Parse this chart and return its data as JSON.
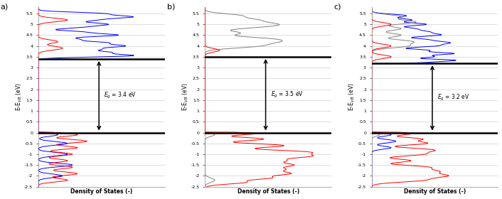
{
  "panels": [
    {
      "label": "a)",
      "eg_text": "$E_g$ = 3.4 eV",
      "eg_value": 3.4,
      "vbm": 0.0,
      "cbm": 3.4,
      "ylabel": "E-E$_{VB}$ (eV)",
      "xlabel": "Density of States (-)"
    },
    {
      "label": "b)",
      "eg_text": "$E_g$ = 3.5 eV",
      "eg_value": 3.5,
      "vbm": 0.0,
      "cbm": 3.5,
      "ylabel": "E-E$_{VB}$ (eV)",
      "xlabel": "Density of States (-)"
    },
    {
      "label": "c)",
      "eg_text": "$E_g$ = 3.2 eV",
      "eg_value": 3.2,
      "vbm": 0.0,
      "cbm": 3.2,
      "ylabel": "E-E$_{VB}$ (eV)",
      "xlabel": "Density of States (-)"
    }
  ],
  "ylim": [
    -2.5,
    5.8
  ],
  "yticks": [
    -2.5,
    -2.0,
    -1.5,
    -1.0,
    -0.5,
    0.0,
    0.5,
    1.0,
    1.5,
    2.0,
    2.5,
    3.0,
    3.5,
    4.0,
    4.5,
    5.0,
    5.5
  ],
  "fig_bg": "#ffffff",
  "axes_bg": "#ffffff",
  "grid_color": "#d0d0d0",
  "hline_color": "black",
  "hline_lw": 1.8
}
